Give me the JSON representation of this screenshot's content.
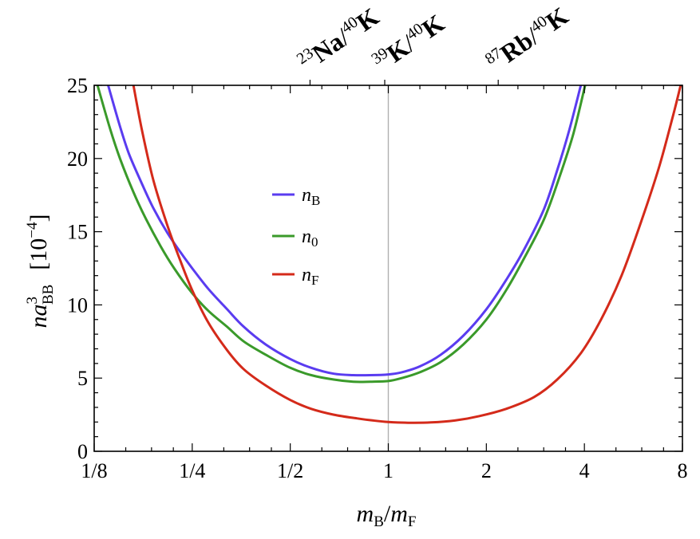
{
  "chart_data": {
    "type": "line",
    "title": "",
    "xscale": "log2",
    "xlim": [
      0.125,
      8
    ],
    "ylim": [
      0,
      25
    ],
    "x_ticks": [
      {
        "value": 0.125,
        "label": "1/8"
      },
      {
        "value": 0.25,
        "label": "1/4"
      },
      {
        "value": 0.5,
        "label": "1/2"
      },
      {
        "value": 1,
        "label": "1"
      },
      {
        "value": 2,
        "label": "2"
      },
      {
        "value": 4,
        "label": "4"
      },
      {
        "value": 8,
        "label": "8"
      }
    ],
    "y_ticks": [
      0,
      5,
      10,
      15,
      20,
      25
    ],
    "xlabel": {
      "m": "m",
      "sub1": "B",
      "slash": "/",
      "sub2": "F"
    },
    "ylabel": {
      "n": "n",
      "a": "a",
      "sup": "3",
      "sub": "BB",
      "unit": "[10",
      "unit_sup": "−4",
      "unit_close": "]"
    },
    "vline": {
      "x": 1,
      "color": "#b0b0b0"
    },
    "top_annotations": [
      {
        "x": 0.575,
        "iso_sup": "23",
        "elem": "Na",
        "iso2_sup": "40",
        "elem2": "K"
      },
      {
        "x": 0.975,
        "iso_sup": "39",
        "elem": "K",
        "iso2_sup": "40",
        "elem2": "K"
      },
      {
        "x": 2.175,
        "iso_sup": "87",
        "elem": "Rb",
        "iso2_sup": "40",
        "elem2": "K"
      }
    ],
    "series": [
      {
        "name": "n_B",
        "label_main": "n",
        "label_sub": "B",
        "color": "#5a3cf0",
        "x": [
          0.138,
          0.15,
          0.16,
          0.175,
          0.19,
          0.21,
          0.23,
          0.25,
          0.28,
          0.32,
          0.36,
          0.42,
          0.5,
          0.58,
          0.68,
          0.78,
          0.88,
          1.0,
          1.1,
          1.25,
          1.45,
          1.7,
          2.0,
          2.3,
          2.6,
          3.0,
          3.3,
          3.6,
          3.9
        ],
        "values": [
          25,
          22.2,
          20.3,
          18.3,
          16.6,
          14.9,
          13.6,
          12.5,
          11.1,
          9.7,
          8.5,
          7.3,
          6.3,
          5.7,
          5.3,
          5.2,
          5.2,
          5.25,
          5.4,
          5.8,
          6.6,
          7.9,
          9.7,
          11.7,
          13.7,
          16.5,
          19.2,
          22,
          25
        ]
      },
      {
        "name": "n_0",
        "label_main": "n",
        "label_sub": "0",
        "color": "#3a9a2a",
        "x": [
          0.128,
          0.14,
          0.15,
          0.165,
          0.18,
          0.2,
          0.22,
          0.25,
          0.28,
          0.32,
          0.36,
          0.42,
          0.5,
          0.58,
          0.68,
          0.78,
          0.88,
          1.0,
          1.1,
          1.25,
          1.45,
          1.7,
          2.0,
          2.3,
          2.6,
          3.0,
          3.35,
          3.7,
          4.02
        ],
        "values": [
          25,
          22,
          20,
          17.7,
          15.9,
          14.0,
          12.5,
          10.8,
          9.6,
          8.5,
          7.5,
          6.6,
          5.7,
          5.2,
          4.9,
          4.75,
          4.75,
          4.8,
          5.0,
          5.4,
          6.1,
          7.3,
          9.0,
          11.0,
          13.1,
          15.8,
          18.7,
          21.7,
          25
        ]
      },
      {
        "name": "n_F",
        "label_main": "n",
        "label_sub": "F",
        "color": "#d42a1a",
        "x": [
          0.165,
          0.175,
          0.19,
          0.21,
          0.23,
          0.25,
          0.28,
          0.32,
          0.36,
          0.42,
          0.5,
          0.58,
          0.68,
          0.8,
          0.9,
          1.0,
          1.15,
          1.35,
          1.6,
          1.9,
          2.3,
          2.8,
          3.3,
          3.9,
          4.5,
          5.2,
          6.0,
          6.8,
          7.5,
          7.9
        ],
        "values": [
          25,
          22,
          18.5,
          15.4,
          13.0,
          11.0,
          8.8,
          6.9,
          5.6,
          4.5,
          3.5,
          2.9,
          2.5,
          2.25,
          2.1,
          2.0,
          1.95,
          1.97,
          2.1,
          2.4,
          2.9,
          3.7,
          4.9,
          6.7,
          9.0,
          12.0,
          15.8,
          19.5,
          23,
          25
        ]
      }
    ]
  }
}
